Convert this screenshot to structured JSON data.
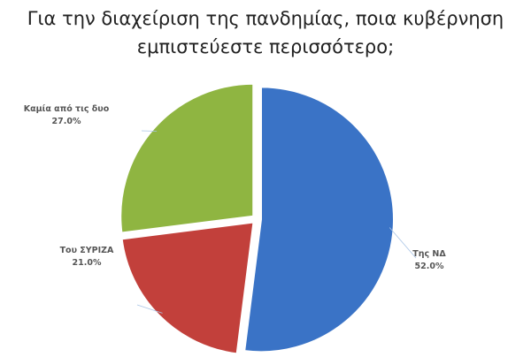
{
  "chart_data": {
    "type": "pie",
    "title": [
      "Για την διαχείριση της πανδημίας, ποια κυβέρνηση",
      "εμπιστεύεστε περισσότερο;"
    ],
    "categories": [
      "Της ΝΔ",
      "Του ΣΥΡΙΖΑ",
      "Καμία από τις δυο"
    ],
    "values": [
      52,
      21,
      27
    ],
    "value_labels": [
      "52.0%",
      "21.0%",
      "27.0%"
    ],
    "colors": [
      "#3a73c6",
      "#c2403b",
      "#8fb541"
    ]
  }
}
